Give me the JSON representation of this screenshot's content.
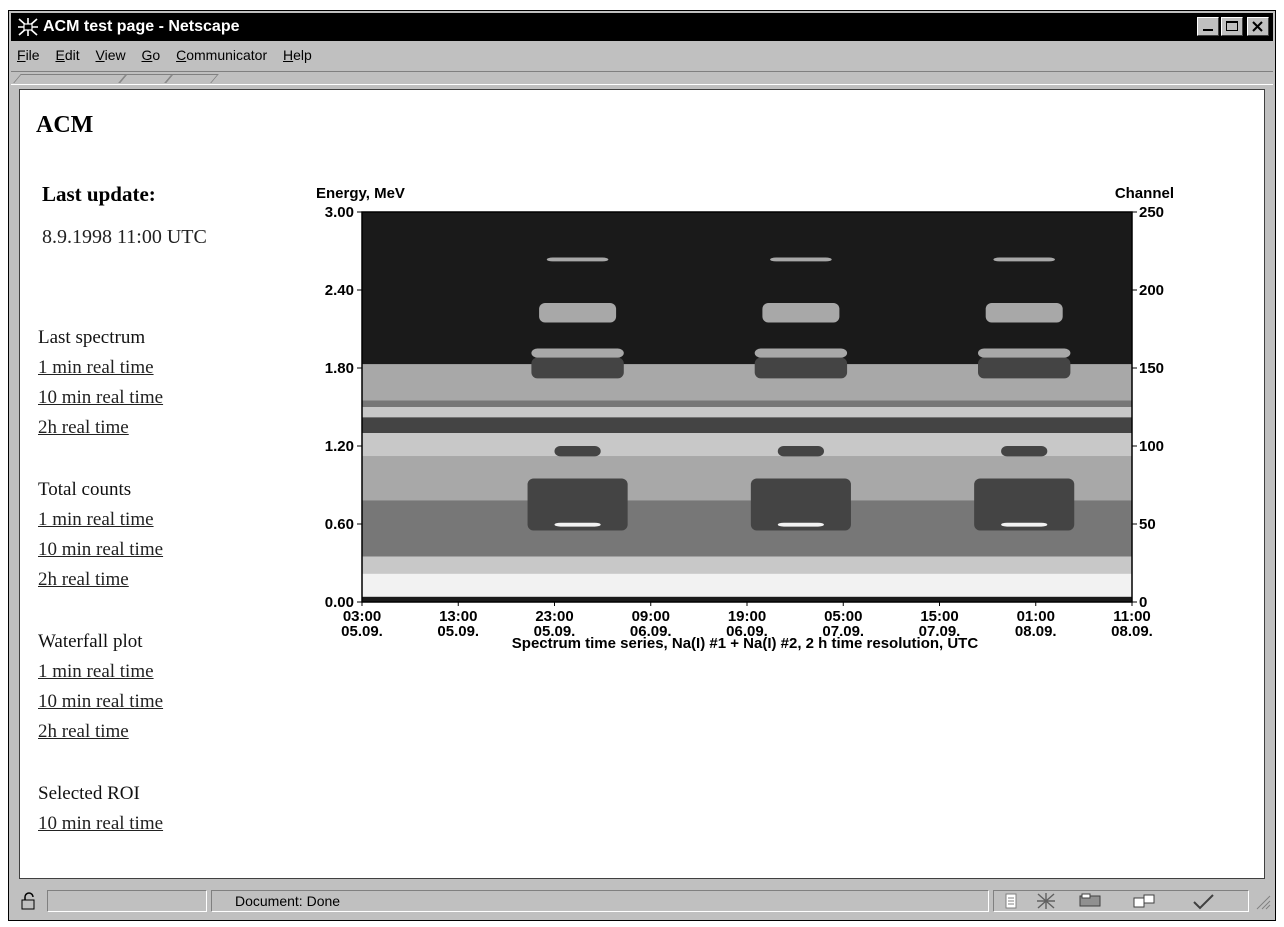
{
  "window": {
    "title": "ACM test page - Netscape"
  },
  "menu": [
    "File",
    "Edit",
    "View",
    "Go",
    "Communicator",
    "Help"
  ],
  "page": {
    "title": "ACM",
    "last_update_label": "Last update:",
    "last_update_value": "8.9.1998 11:00 UTC"
  },
  "nav": [
    {
      "heading": "Last spectrum",
      "links": [
        "1 min real time",
        "10 min real time",
        "2h real time"
      ]
    },
    {
      "heading": "Total counts",
      "links": [
        "1 min real time",
        "10 min real time",
        "2h real time"
      ]
    },
    {
      "heading": "Waterfall plot",
      "links": [
        "1 min real time",
        "10 min real time",
        "2h real time"
      ]
    },
    {
      "heading": "Selected ROI",
      "links": [
        "10 min real time"
      ]
    }
  ],
  "chart_data": {
    "type": "heatmap",
    "title": "",
    "xlabel": "Spectrum time series, Na(I) #1 + Na(I) #2, 2 h time resolution, UTC",
    "ylabel": "Energy, MeV",
    "ylabel_right": "Channel",
    "ylim": [
      0,
      3.0
    ],
    "ylim_right": [
      0,
      250
    ],
    "y_ticks": [
      "0.00",
      "0.60",
      "1.20",
      "1.80",
      "2.40",
      "3.00"
    ],
    "y_ticks_right": [
      "0",
      "50",
      "100",
      "150",
      "200",
      "250"
    ],
    "x_ticks": [
      {
        "time": "03:00",
        "date": "05.09."
      },
      {
        "time": "13:00",
        "date": "05.09."
      },
      {
        "time": "23:00",
        "date": "05.09."
      },
      {
        "time": "09:00",
        "date": "06.09."
      },
      {
        "time": "19:00",
        "date": "06.09."
      },
      {
        "time": "05:00",
        "date": "07.09."
      },
      {
        "time": "15:00",
        "date": "07.09."
      },
      {
        "time": "01:00",
        "date": "08.09."
      },
      {
        "time": "11:00",
        "date": "08.09."
      }
    ],
    "colors": {
      "dark": "#1a1a1a",
      "mid_dark": "#444444",
      "mid": "#777777",
      "light": "#a8a8a8",
      "lighter": "#c8c8c8",
      "white": "#f2f2f2"
    }
  },
  "status": {
    "text": "Document: Done"
  }
}
